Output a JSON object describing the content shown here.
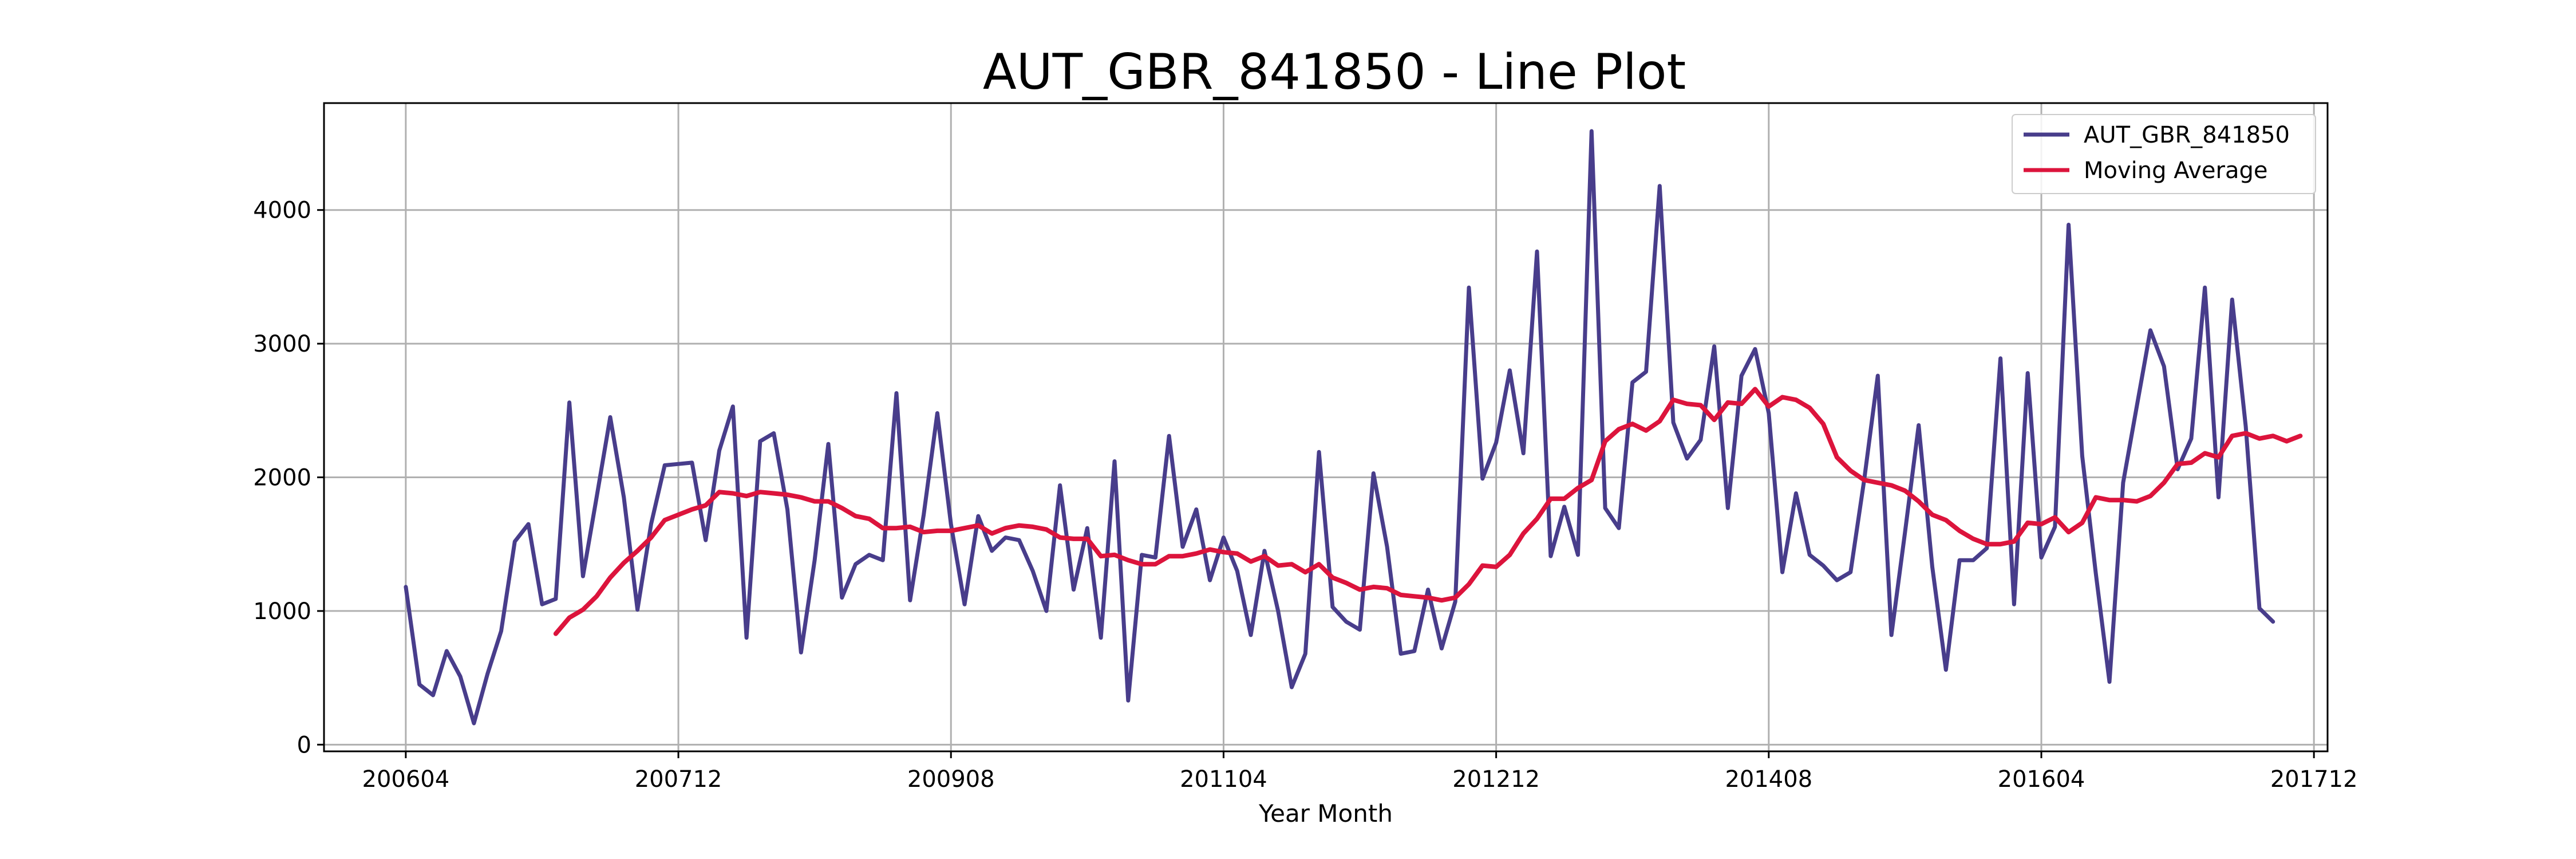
{
  "chart_data": {
    "type": "line",
    "title": "AUT_GBR_841850 - Line Plot",
    "xlabel": "Year Month",
    "ylabel": "",
    "x_ticks": [
      "200604",
      "200712",
      "200908",
      "201104",
      "201212",
      "201408",
      "201604",
      "201712"
    ],
    "y_ticks": [
      0,
      1000,
      2000,
      3000,
      4000
    ],
    "xlim": [
      "200510",
      "201801"
    ],
    "ylim": [
      -50,
      4800
    ],
    "grid": true,
    "legend_position": "top-right",
    "start_month": "200604",
    "series": [
      {
        "name": "AUT_GBR_841850",
        "color": "#483d8b",
        "values": [
          1180,
          450,
          370,
          700,
          510,
          160,
          530,
          850,
          1520,
          1650,
          1050,
          1090,
          2560,
          1260,
          1850,
          2450,
          1850,
          1010,
          1650,
          2090,
          2100,
          2110,
          1530,
          2200,
          2530,
          800,
          2270,
          2330,
          1760,
          690,
          1380,
          2250,
          1100,
          1350,
          1420,
          1380,
          2630,
          1080,
          1720,
          2480,
          1650,
          1050,
          1710,
          1450,
          1550,
          1530,
          1300,
          1000,
          1940,
          1160,
          1620,
          800,
          2120,
          330,
          1420,
          1400,
          2310,
          1480,
          1760,
          1230,
          1550,
          1300,
          820,
          1450,
          1000,
          430,
          680,
          2190,
          1030,
          920,
          860,
          2030,
          1480,
          680,
          700,
          1160,
          720,
          1070,
          3420,
          1990,
          2260,
          2800,
          2180,
          3690,
          1410,
          1780,
          1420,
          4590,
          1770,
          1620,
          2710,
          2790,
          4180,
          2410,
          2140,
          2280,
          2980,
          1770,
          2760,
          2960,
          2480,
          1290,
          1880,
          1420,
          1340,
          1230,
          1290,
          1980,
          2760,
          820,
          1590,
          2390,
          1330,
          560,
          1380,
          1380,
          1470,
          2890,
          1050,
          2780,
          1400,
          1630,
          3890,
          2160,
          1280,
          470,
          1960,
          2530,
          3100,
          2830,
          2060,
          2290,
          3420,
          1850,
          3330,
          2380,
          1020,
          920
        ]
      },
      {
        "name": "Moving Average",
        "color": "#dc143c",
        "start_index": 11,
        "values": [
          830,
          950,
          1010,
          1110,
          1250,
          1360,
          1450,
          1550,
          1680,
          1720,
          1760,
          1790,
          1890,
          1880,
          1860,
          1890,
          1880,
          1870,
          1850,
          1820,
          1820,
          1770,
          1710,
          1690,
          1620,
          1620,
          1630,
          1590,
          1600,
          1600,
          1620,
          1640,
          1580,
          1620,
          1640,
          1630,
          1610,
          1550,
          1540,
          1540,
          1410,
          1420,
          1380,
          1350,
          1350,
          1410,
          1410,
          1430,
          1460,
          1440,
          1430,
          1370,
          1410,
          1340,
          1350,
          1290,
          1350,
          1250,
          1210,
          1160,
          1180,
          1170,
          1120,
          1110,
          1100,
          1080,
          1100,
          1200,
          1340,
          1330,
          1420,
          1580,
          1690,
          1840,
          1840,
          1920,
          1980,
          2270,
          2360,
          2400,
          2350,
          2420,
          2580,
          2550,
          2540,
          2430,
          2560,
          2550,
          2660,
          2530,
          2600,
          2580,
          2520,
          2400,
          2150,
          2050,
          1980,
          1960,
          1940,
          1900,
          1820,
          1720,
          1680,
          1600,
          1540,
          1500,
          1500,
          1520,
          1660,
          1650,
          1700,
          1590,
          1660,
          1850,
          1830,
          1830,
          1820,
          1860,
          1960,
          2100,
          2110,
          2180,
          2150,
          2310,
          2330,
          2290,
          2310,
          2270,
          2310
        ]
      }
    ]
  }
}
